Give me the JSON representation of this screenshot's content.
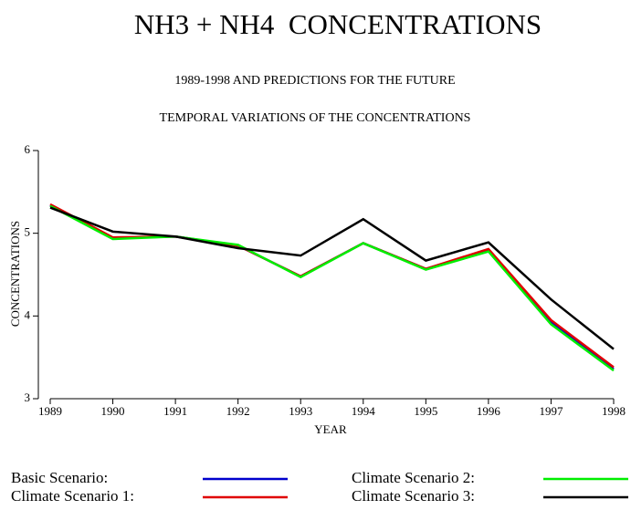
{
  "chart_data": {
    "type": "line",
    "title": "NH3 + NH4  CONCENTRATIONS",
    "subtitle": "1989-1998 AND PREDICTIONS FOR THE FUTURE",
    "subtitle2": "TEMPORAL VARIATIONS OF THE CONCENTRATIONS",
    "x_label": "YEAR",
    "y_label": "CONCENTRATIONS",
    "x": [
      1989,
      1990,
      1991,
      1992,
      1993,
      1994,
      1995,
      1996,
      1997,
      1998
    ],
    "xlim": [
      1989,
      1998
    ],
    "xticks": [
      1989,
      1990,
      1991,
      1992,
      1993,
      1994,
      1995,
      1996,
      1997,
      1998
    ],
    "ylim": [
      3,
      6
    ],
    "yticks": [
      3,
      4,
      5,
      6
    ],
    "series": [
      {
        "name": "Basic Scenario:",
        "color": "#0000cc",
        "values": [
          5.34,
          4.94,
          4.96,
          4.85,
          4.48,
          4.88,
          4.57,
          4.8,
          3.93,
          3.36
        ]
      },
      {
        "name": "Climate Scenario 1:",
        "color": "#e00000",
        "values": [
          5.35,
          4.95,
          4.96,
          4.85,
          4.48,
          4.88,
          4.57,
          4.81,
          3.95,
          3.38
        ]
      },
      {
        "name": "Climate Scenario 2:",
        "color": "#00ee00",
        "values": [
          5.33,
          4.93,
          4.96,
          4.86,
          4.47,
          4.88,
          4.56,
          4.78,
          3.9,
          3.34
        ]
      },
      {
        "name": "Climate Scenario 3:",
        "color": "#000000",
        "values": [
          5.31,
          5.02,
          4.96,
          4.82,
          4.73,
          5.17,
          4.67,
          4.89,
          4.2,
          3.6
        ]
      }
    ]
  }
}
